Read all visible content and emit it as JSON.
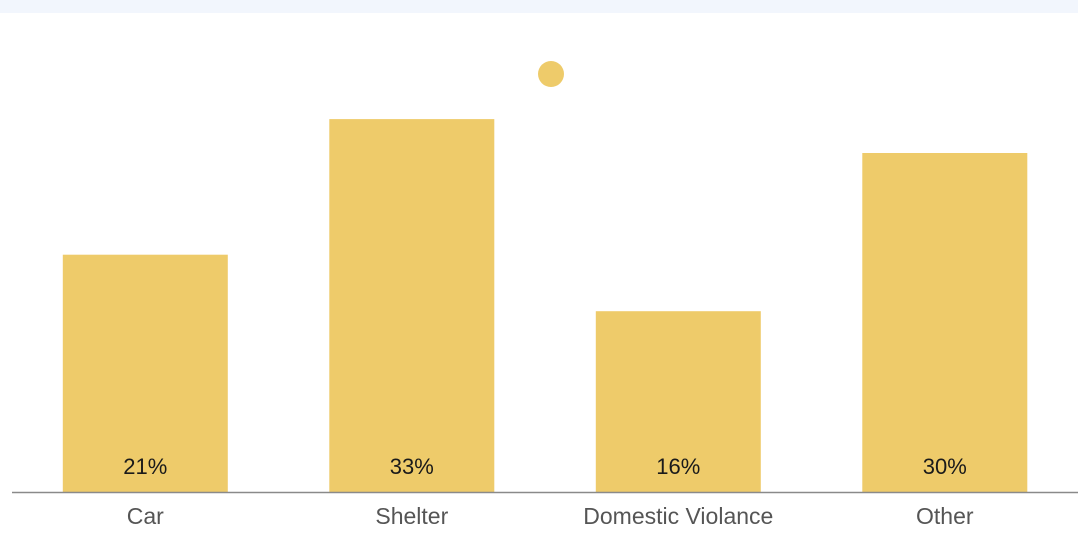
{
  "colors": {
    "bar": "#eecb6a",
    "axis": "#8a8a8a",
    "top_band": "#f2f6fd"
  },
  "chart_data": {
    "type": "bar",
    "title": "",
    "xlabel": "",
    "ylabel": "",
    "legend": {
      "marker": "circle",
      "placement": "top-center",
      "name": ""
    },
    "categories": [
      "Car",
      "Shelter",
      "Domestic Violance",
      "Other"
    ],
    "series": [
      {
        "values": [
          21,
          33,
          16,
          30
        ],
        "labels": [
          "21%",
          "33%",
          "16%",
          "30%"
        ]
      }
    ],
    "ylim": [
      0,
      40
    ],
    "grid": false
  }
}
